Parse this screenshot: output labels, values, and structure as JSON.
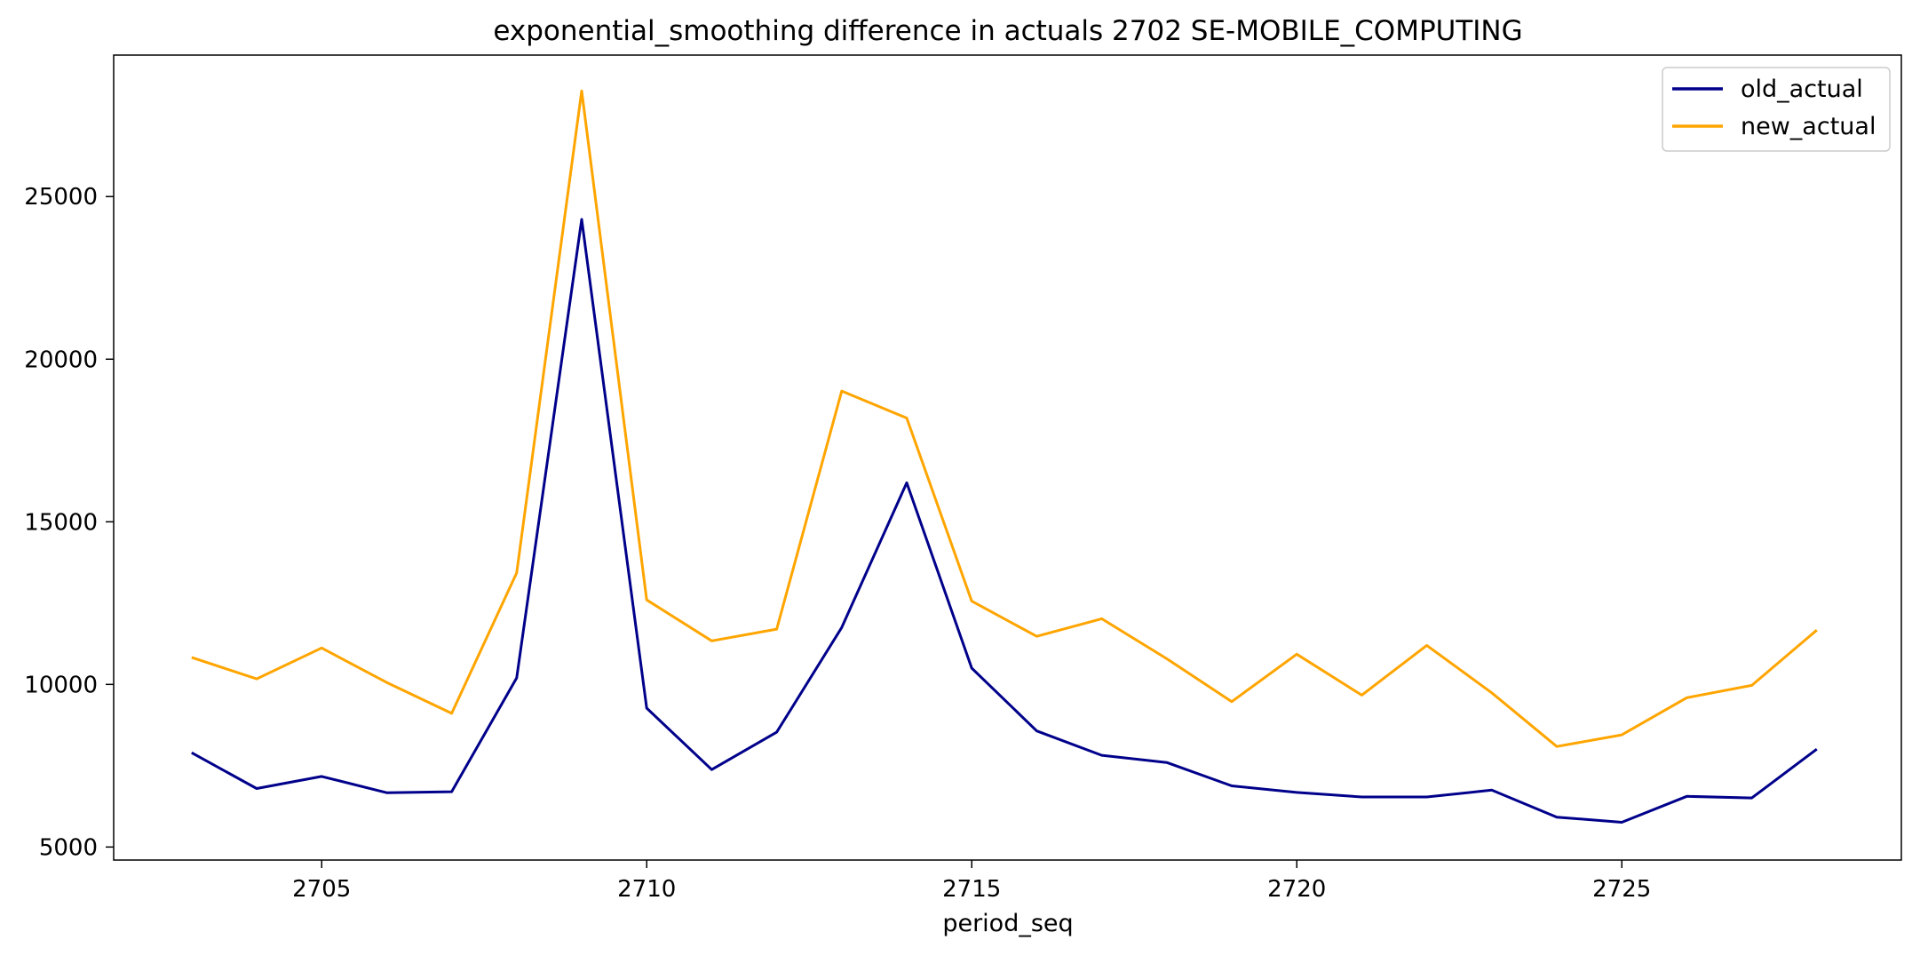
{
  "chart_data": {
    "type": "line",
    "title": "exponential_smoothing difference in actuals 2702 SE-MOBILE_COMPUTING",
    "xlabel": "period_seq",
    "ylabel": "",
    "x": [
      2703,
      2704,
      2705,
      2706,
      2707,
      2708,
      2709,
      2710,
      2711,
      2712,
      2713,
      2714,
      2715,
      2716,
      2717,
      2718,
      2719,
      2720,
      2721,
      2722,
      2723,
      2724,
      2725,
      2726,
      2727,
      2728
    ],
    "xlim": [
      2701.8,
      2729.3
    ],
    "ylim": [
      4600,
      29350
    ],
    "xticks": [
      2705,
      2710,
      2715,
      2720,
      2725
    ],
    "yticks": [
      5000,
      10000,
      15000,
      20000,
      25000
    ],
    "grid": false,
    "legend_position": "top-right",
    "series": [
      {
        "name": "old_actual",
        "color": "#00008b",
        "values": [
          7900,
          6800,
          7170,
          6670,
          6700,
          10200,
          24300,
          9270,
          7380,
          8530,
          11750,
          16200,
          10500,
          8570,
          7820,
          7600,
          6880,
          6680,
          6540,
          6540,
          6750,
          5920,
          5760,
          6560,
          6510,
          8010
        ]
      },
      {
        "name": "new_actual",
        "color": "#ffa500",
        "values": [
          10830,
          10170,
          11120,
          10060,
          9110,
          13430,
          28250,
          12600,
          11340,
          11700,
          19020,
          18190,
          12560,
          11480,
          12020,
          10790,
          9470,
          10930,
          9670,
          11200,
          9740,
          8090,
          8450,
          9590,
          9970,
          11670
        ]
      }
    ]
  }
}
